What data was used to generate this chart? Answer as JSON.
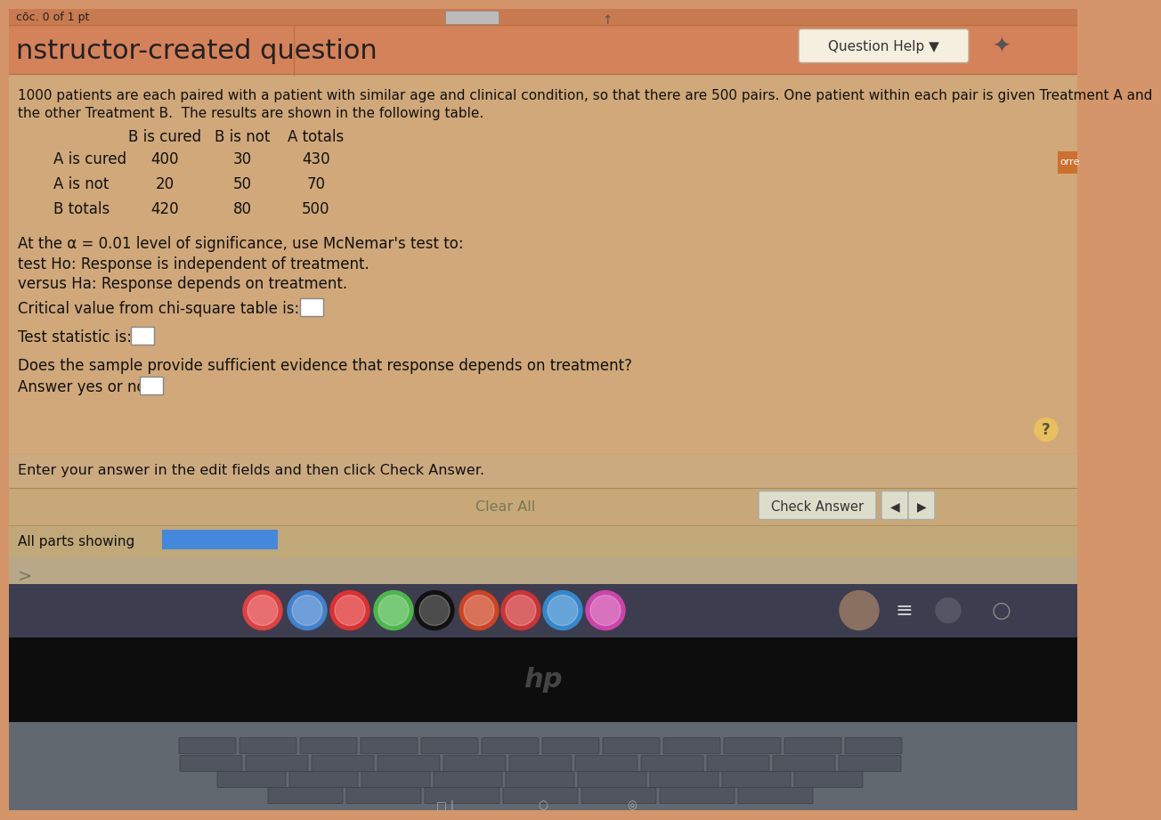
{
  "bg_main": "#d4956a",
  "bg_content": "#d4956a",
  "bg_header_stripe": "#c8845a",
  "bg_light_content": "#c8c0b0",
  "header_text": "nstructor-created question",
  "question_help_text": "Question Help ▼",
  "intro_line1": "1000 patients are each paired with a patient with similar age and clinical condition, so that there are 500 pairs. One patient within each pair is given Treatment A and",
  "intro_line2": "the other Treatment B.  The results are shown in the following table.",
  "table_col_headers": [
    "B is cured",
    "B is not",
    "A totals"
  ],
  "table_row_labels": [
    "A is cured",
    "A is not",
    "B totals"
  ],
  "table_data": [
    [
      400,
      30,
      430
    ],
    [
      20,
      50,
      70
    ],
    [
      420,
      80,
      500
    ]
  ],
  "alpha_text": "At the α = 0.01 level of significance, use McNemar's test to:",
  "h0_text": "test Ho: Response is independent of treatment.",
  "ha_text": "versus Ha: Response depends on treatment.",
  "critical_label": "Critical value from chi-square table is:",
  "test_stat_label": "Test statistic is:",
  "does_sample_label": "Does the sample provide sufficient evidence that response depends on treatment?",
  "answer_label": "Answer yes or no:",
  "enter_answer_text": "Enter your answer in the edit fields and then click Check Answer.",
  "check_answer_text": "Check Answer",
  "clear_all_text": "Clear All",
  "all_parts_text": "All parts showing",
  "right_side_text": "orre",
  "top_text": "cōc. 0 of 1 pt",
  "taskbar_bg": "#3d3d50",
  "taskbar_icon_colors": [
    "#e04040",
    "#4080cc",
    "#dd3030",
    "#4cb84c",
    "#111111",
    "#cc4422",
    "#cc3333",
    "#3388cc",
    "#cc44aa"
  ],
  "hp_bar_bg": "#101010",
  "keyboard_bg": "#5a5a6a",
  "laptop_frame_bg": "#6a7a6a"
}
